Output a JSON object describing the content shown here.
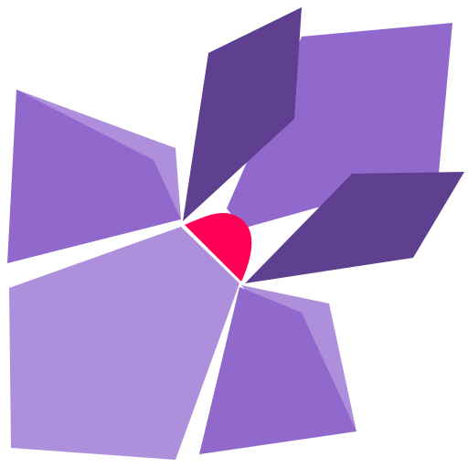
{
  "logo": {
    "icon": "geometric-flower-logo-icon",
    "colors": {
      "purple_light": "#AE8FDB",
      "purple_mid": "#9169CC",
      "purple_dark": "#5F3F8F",
      "center_red": "#FF0055",
      "background": "#FFFFFF"
    }
  }
}
